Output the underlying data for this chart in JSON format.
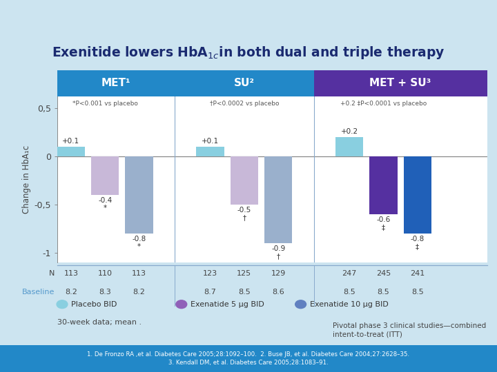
{
  "title": "Exenitide lowers HbA$_{1c}$in both dual and triple therapy",
  "background_color": "#cce4f0",
  "plot_bg_color": "#ffffff",
  "groups": [
    {
      "label": "MET¹",
      "header_color": "#2288c8",
      "annotation": "*P<0.001 vs placebo",
      "bars": [
        {
          "value": 0.1,
          "color": "#89cfe0",
          "label": "+0.1",
          "marker": ""
        },
        {
          "value": -0.4,
          "color": "#c8b8d8",
          "label": "-0.4",
          "marker": "*"
        },
        {
          "value": -0.8,
          "color": "#9ab0cc",
          "label": "-0.8",
          "marker": "*"
        }
      ],
      "N": [
        "113",
        "110",
        "113"
      ],
      "Baseline": [
        "8.2",
        "8.3",
        "8.2"
      ]
    },
    {
      "label": "SU²",
      "header_color": "#2288c8",
      "annotation": "†P<0.0002 vs placebo",
      "bars": [
        {
          "value": 0.1,
          "color": "#89cfe0",
          "label": "+0.1",
          "marker": ""
        },
        {
          "value": -0.5,
          "color": "#c8b8d8",
          "label": "-0.5",
          "marker": "†"
        },
        {
          "value": -0.9,
          "color": "#9ab0cc",
          "label": "-0.9",
          "marker": "†"
        }
      ],
      "N": [
        "123",
        "125",
        "129"
      ],
      "Baseline": [
        "8.7",
        "8.5",
        "8.6"
      ]
    },
    {
      "label": "MET + SU³",
      "header_color": "#5530a0",
      "annotation": "+0.2 ‡P<0.0001 vs placebo",
      "bars": [
        {
          "value": 0.2,
          "color": "#89cfe0",
          "label": "+0.2",
          "marker": ""
        },
        {
          "value": -0.6,
          "color": "#5530a0",
          "label": "-0.6",
          "marker": "‡"
        },
        {
          "value": -0.8,
          "color": "#2060b8",
          "label": "-0.8",
          "marker": "‡"
        }
      ],
      "N": [
        "247",
        "245",
        "241"
      ],
      "Baseline": [
        "8.5",
        "8.5",
        "8.5"
      ]
    }
  ],
  "ylim": [
    -1.1,
    0.62
  ],
  "yticks": [
    -1.0,
    -0.5,
    0.0,
    0.5
  ],
  "ytick_labels": [
    "-1",
    "-0,5",
    "0",
    "0,5"
  ],
  "ylabel": "Change in HbA₁c",
  "footer_left": "30-week data; mean .",
  "footer_right": "Pivotal phase 3 clinical studies—combined\nintent-to-treat (ITT)",
  "references": "1. De Fronzo RA ,et al. Diabetes Care 2005;28:1092–100.  2. Buse JB, et al. Diabetes Care 2004;27:2628–35.\n3. Kendall DM, et al. Diabetes Care 2005;28:1083–91.",
  "legend": [
    {
      "label": "Placebo BID",
      "color": "#89cfe0"
    },
    {
      "label": "Exenatide 5 μg BID",
      "color": "#9060b8"
    },
    {
      "label": "Exenatide 10 μg BID",
      "color": "#6080c0"
    }
  ],
  "ref_bg": "#2288c8",
  "sep_color": "#88aacc",
  "zero_line_color": "#888888",
  "N_label_color": "#444444",
  "baseline_label_color": "#5599cc"
}
